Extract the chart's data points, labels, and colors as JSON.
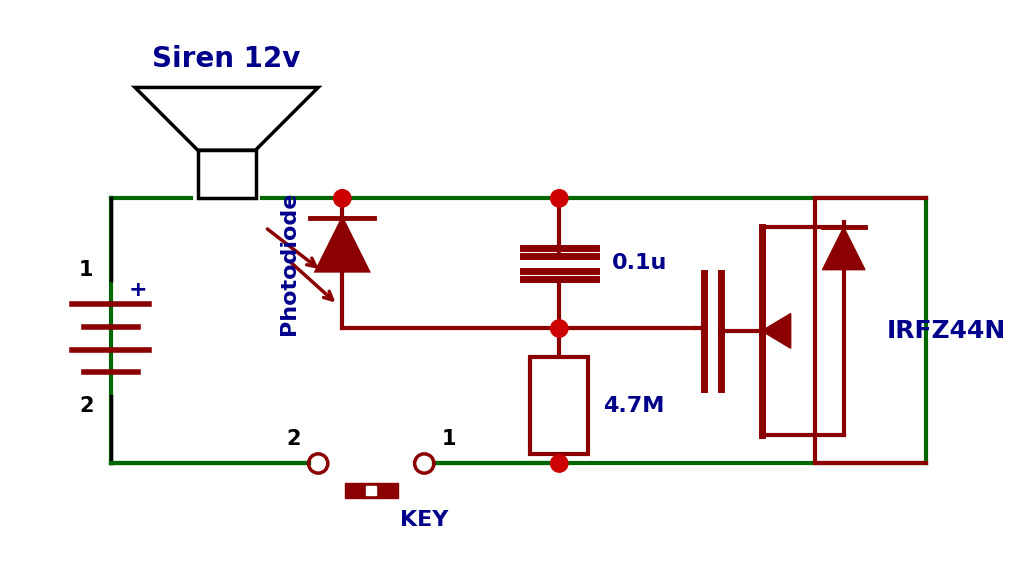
{
  "bg_color": "#ffffff",
  "wire_color": "#006600",
  "component_color": "#8b0000",
  "text_color_blue": "#00008b",
  "text_color_black": "#000000",
  "junction_color": "#cc0000",
  "siren_label": "Siren 12v",
  "photodiode_label": "Photodiode",
  "capacitor_label": "0.1u",
  "resistor_label": "4.7M",
  "mosfet_label": "IRFZ44N",
  "key_label": "KEY",
  "bat_label_1": "1",
  "bat_label_2": "2",
  "bat_plus": "+",
  "key_num_left": "2",
  "key_num_right": "1"
}
